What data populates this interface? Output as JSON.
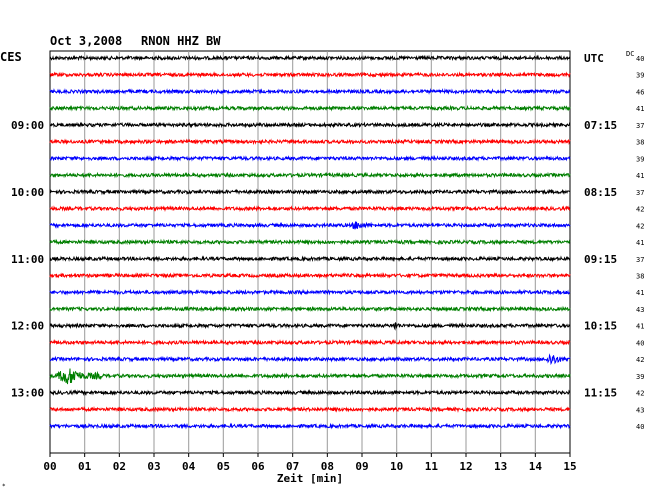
{
  "header": {
    "date": "Oct 3,2008",
    "station": "RNON HHZ BW",
    "left_zone": "CES",
    "right_zone": "UTC",
    "dc_label": "DC"
  },
  "footer_mark": "*",
  "chart_data": {
    "type": "line",
    "title": "Oct 3,2008   RNON HHZ BW",
    "xlabel": "Zeit [min]",
    "xlim": [
      0,
      15
    ],
    "x_ticks": [
      "00",
      "01",
      "02",
      "03",
      "04",
      "05",
      "06",
      "07",
      "08",
      "09",
      "10",
      "11",
      "12",
      "13",
      "14",
      "15"
    ],
    "grid": true,
    "trace_colors": [
      "#000000",
      "#ff0000",
      "#0000ff",
      "#007f00"
    ],
    "left_time_labels": [
      {
        "trace": 4,
        "label": "09:00"
      },
      {
        "trace": 8,
        "label": "10:00"
      },
      {
        "trace": 12,
        "label": "11:00"
      },
      {
        "trace": 16,
        "label": "12:00"
      },
      {
        "trace": 20,
        "label": "13:00"
      }
    ],
    "right_time_labels": [
      {
        "trace": 0,
        "label": "UTC"
      },
      {
        "trace": 4,
        "label": "07:15"
      },
      {
        "trace": 8,
        "label": "08:15"
      },
      {
        "trace": 12,
        "label": "09:15"
      },
      {
        "trace": 16,
        "label": "10:15"
      },
      {
        "trace": 20,
        "label": "11:15"
      }
    ],
    "dc_values": [
      "40",
      "39",
      "46",
      "41",
      "37",
      "38",
      "39",
      "41",
      "37",
      "42",
      "42",
      "41",
      "37",
      "38",
      "41",
      "43",
      "41",
      "40",
      "42",
      "39",
      "42",
      "43",
      "40"
    ],
    "events": [
      {
        "trace": 10,
        "start_min": 8.7,
        "end_min": 9.3,
        "amplitude": "small"
      },
      {
        "trace": 16,
        "start_min": 9.9,
        "end_min": 10.1,
        "amplitude": "small"
      },
      {
        "trace": 18,
        "start_min": 14.3,
        "end_min": 15.0,
        "amplitude": "medium"
      },
      {
        "trace": 19,
        "start_min": 0.2,
        "end_min": 1.5,
        "amplitude": "large"
      }
    ]
  }
}
